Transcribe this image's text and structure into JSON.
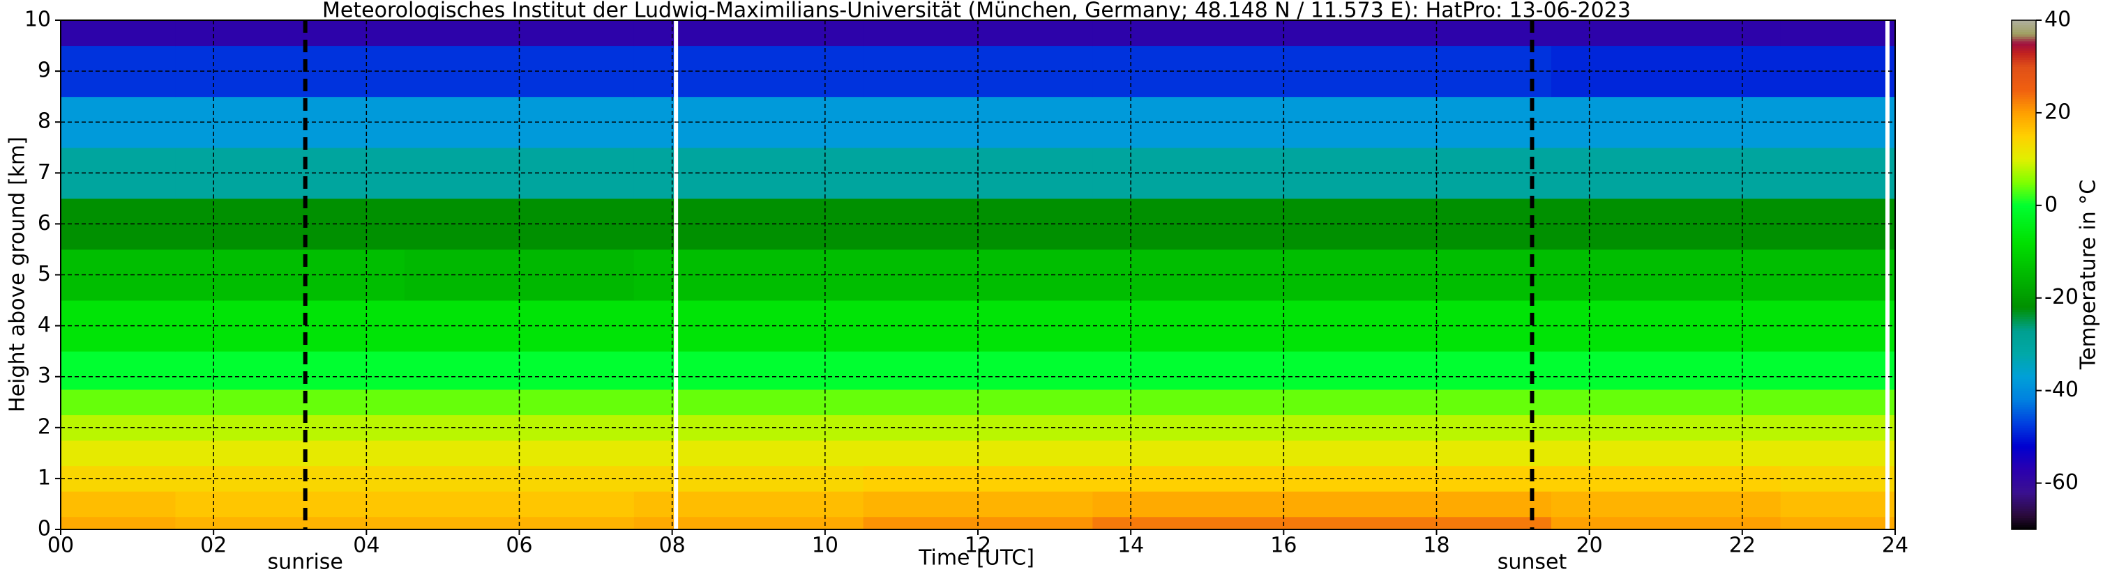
{
  "chart_data": {
    "type": "heatmap",
    "title": "Meteorologisches Institut der Ludwig-Maximilians-Universität (München, Germany; 48.148 N / 11.573 E):    HatPro: 13-06-2023",
    "x_label": "Time [UTC]",
    "y_label": "Height above ground [km]",
    "colorbar_label": "Temperature in °C",
    "x": [
      0,
      3,
      6,
      9,
      12,
      15,
      18,
      21,
      24
    ],
    "y": [
      0,
      0.5,
      1,
      1.5,
      2,
      2.5,
      3,
      4,
      5,
      6,
      7,
      8,
      9,
      10
    ],
    "values": [
      [
        19,
        18,
        18,
        19,
        21,
        23,
        23,
        20,
        19
      ],
      [
        17,
        16,
        16,
        17,
        18,
        19,
        19,
        18,
        17
      ],
      [
        14,
        14,
        14,
        14,
        15,
        15,
        15,
        15,
        14
      ],
      [
        11,
        11,
        11,
        11,
        11,
        11,
        11,
        11,
        11
      ],
      [
        8,
        8,
        8,
        8,
        8,
        8,
        8,
        8,
        8
      ],
      [
        4,
        4,
        4,
        4,
        4,
        4,
        4,
        4,
        4
      ],
      [
        0,
        0,
        0,
        0,
        0,
        0,
        0,
        0,
        0
      ],
      [
        -7,
        -7,
        -7,
        -7,
        -7,
        -7,
        -7,
        -7,
        -7
      ],
      [
        -14,
        -14,
        -15,
        -14,
        -14,
        -14,
        -14,
        -14,
        -14
      ],
      [
        -22,
        -22,
        -22,
        -22,
        -22,
        -22,
        -22,
        -22,
        -22
      ],
      [
        -30,
        -30,
        -30,
        -30,
        -30,
        -30,
        -30,
        -30,
        -30
      ],
      [
        -38,
        -38,
        -38,
        -38,
        -38,
        -38,
        -38,
        -38,
        -38
      ],
      [
        -48,
        -48,
        -48,
        -48,
        -48,
        -48,
        -48,
        -49,
        -49
      ],
      [
        -58,
        -58,
        -58,
        -58,
        -58,
        -58,
        -58,
        -58,
        -58
      ]
    ],
    "xlim": [
      0,
      24
    ],
    "ylim": [
      0,
      10
    ],
    "xticks": [
      {
        "value": 0,
        "label": "00"
      },
      {
        "value": 2,
        "label": "02"
      },
      {
        "value": 4,
        "label": "04"
      },
      {
        "value": 6,
        "label": "06"
      },
      {
        "value": 8,
        "label": "08"
      },
      {
        "value": 10,
        "label": "10"
      },
      {
        "value": 12,
        "label": "12"
      },
      {
        "value": 14,
        "label": "14"
      },
      {
        "value": 16,
        "label": "16"
      },
      {
        "value": 18,
        "label": "18"
      },
      {
        "value": 20,
        "label": "20"
      },
      {
        "value": 22,
        "label": "22"
      },
      {
        "value": 24,
        "label": "24"
      }
    ],
    "yticks": [
      0,
      1,
      2,
      3,
      4,
      5,
      6,
      7,
      8,
      9,
      10
    ],
    "grid": true,
    "clim": [
      -70,
      40
    ],
    "cticks": [
      -60,
      -40,
      -20,
      0,
      20,
      40
    ],
    "colorscale": [
      {
        "value": -70,
        "color": "#000000"
      },
      {
        "value": -67,
        "color": "#2a0a3a"
      },
      {
        "value": -62,
        "color": "#3a1090"
      },
      {
        "value": -57,
        "color": "#2a00b0"
      },
      {
        "value": -52,
        "color": "#0000d0"
      },
      {
        "value": -47,
        "color": "#0040e0"
      },
      {
        "value": -42,
        "color": "#0080e0"
      },
      {
        "value": -37,
        "color": "#00a0d8"
      },
      {
        "value": -32,
        "color": "#00a8a8"
      },
      {
        "value": -27,
        "color": "#00a090"
      },
      {
        "value": -22,
        "color": "#009000"
      },
      {
        "value": -15,
        "color": "#00b800"
      },
      {
        "value": -8,
        "color": "#00e000"
      },
      {
        "value": 0,
        "color": "#00ff30"
      },
      {
        "value": 5,
        "color": "#80ff00"
      },
      {
        "value": 10,
        "color": "#e0f000"
      },
      {
        "value": 15,
        "color": "#ffd000"
      },
      {
        "value": 20,
        "color": "#ffa000"
      },
      {
        "value": 25,
        "color": "#f06010"
      },
      {
        "value": 30,
        "color": "#e05018"
      },
      {
        "value": 33,
        "color": "#c02020"
      },
      {
        "value": 35,
        "color": "#a01040"
      },
      {
        "value": 37,
        "color": "#a0a060"
      },
      {
        "value": 40,
        "color": "#b0b0a0"
      }
    ],
    "annotations": [
      {
        "x": 3.2,
        "label": "sunrise"
      },
      {
        "x": 19.25,
        "label": "sunset"
      }
    ],
    "data_gaps": [
      8.05,
      23.9
    ]
  }
}
